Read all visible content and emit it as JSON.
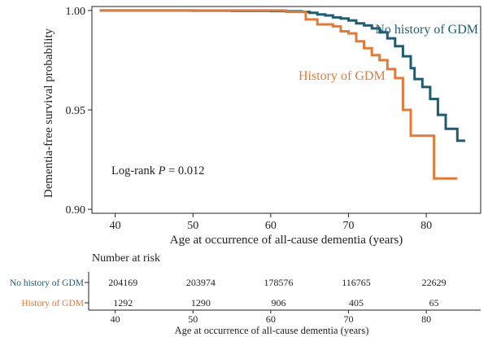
{
  "chart_data": {
    "type": "line",
    "subtype": "kaplan-meier step survival curve with risk table",
    "title": "",
    "xlabel": "Age at occurrence of all-cause dementia (years)",
    "ylabel": "Dementia-free survival probability",
    "xlim": [
      37,
      87
    ],
    "ylim": [
      0.898,
      1.002
    ],
    "x_ticks": [
      40,
      50,
      60,
      70,
      80
    ],
    "x_tick_labels": [
      "40",
      "50",
      "60",
      "70",
      "80"
    ],
    "y_ticks": [
      0.9,
      0.95,
      1.0
    ],
    "y_tick_labels": [
      "0.90",
      "0.95",
      "1.00"
    ],
    "annotation": {
      "prefix": "Log-rank ",
      "p_symbol": "P",
      "suffix": " = 0.012"
    },
    "colors": {
      "no_gdm": "#1f5c70",
      "gdm": "#e07b39",
      "axis": "#222222",
      "text": "#222222"
    },
    "series": [
      {
        "name": "No history of GDM",
        "label": "No history of GDM",
        "color": "#1f5c70",
        "x": [
          38,
          45,
          50,
          55,
          60,
          62,
          64,
          65,
          66,
          67,
          68,
          69,
          70,
          71,
          72,
          73,
          74,
          75,
          76,
          77,
          78,
          78.5,
          79,
          79.5,
          80,
          80.5,
          81,
          81.5,
          82,
          82.5,
          83,
          84,
          85
        ],
        "y": [
          1.0,
          1.0,
          0.9999,
          0.9998,
          0.9997,
          0.9996,
          0.9993,
          0.9988,
          0.998,
          0.9975,
          0.9965,
          0.996,
          0.995,
          0.9935,
          0.9925,
          0.991,
          0.989,
          0.986,
          0.982,
          0.977,
          0.971,
          0.9655,
          0.9655,
          0.9615,
          0.9615,
          0.9555,
          0.9555,
          0.9475,
          0.9475,
          0.9405,
          0.9405,
          0.9345,
          0.9345
        ]
      },
      {
        "name": "History of GDM",
        "label": "History of GDM",
        "color": "#e07b39",
        "x": [
          38,
          60,
          62,
          64.5,
          66,
          68,
          69,
          70,
          71,
          72,
          73,
          74,
          75,
          76,
          77,
          78,
          79,
          80,
          81,
          82,
          84
        ],
        "y": [
          1.0,
          1.0,
          0.9993,
          0.9955,
          0.993,
          0.992,
          0.9895,
          0.9885,
          0.9845,
          0.981,
          0.9775,
          0.975,
          0.9705,
          0.966,
          0.95,
          0.937,
          0.937,
          0.937,
          0.9155,
          0.9155,
          0.9155
        ]
      }
    ],
    "risk_table": {
      "title": "Number at risk",
      "xlabel": "Age at occurrence of all-cause dementia (years)",
      "x_ticks": [
        40,
        50,
        60,
        70,
        80
      ],
      "x_tick_labels": [
        "40",
        "50",
        "60",
        "70",
        "80"
      ],
      "columns_x": [
        41,
        51,
        61,
        71,
        81
      ],
      "rows": [
        {
          "label": "No history of GDM",
          "color": "#1f5c70",
          "values": [
            "204169",
            "203974",
            "178576",
            "116765",
            "22629"
          ]
        },
        {
          "label": "History of GDM",
          "color": "#e07b39",
          "values": [
            "1292",
            "1290",
            "906",
            "405",
            "65"
          ]
        }
      ]
    }
  }
}
